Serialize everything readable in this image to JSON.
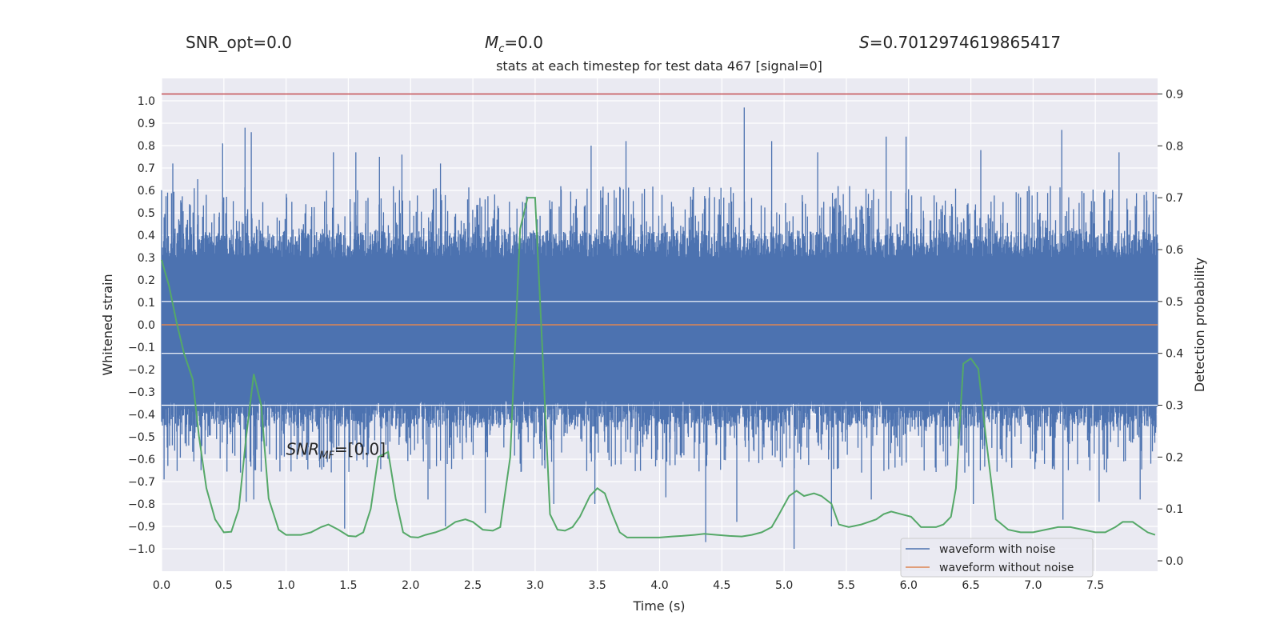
{
  "header": {
    "snr_opt": "SNR_opt=0.0",
    "mc_symbol": "M",
    "mc_sub": "c",
    "mc_value": "=0.0",
    "s_symbol": "S",
    "s_value": "=0.7012974619865417"
  },
  "chart_data": {
    "type": "line",
    "title": "stats at each timestep for test data 467 [signal=0]",
    "xlabel": "Time (s)",
    "ylabel": "Whitened strain",
    "y2label": "Detection probability",
    "xlim": [
      0.0,
      8.0
    ],
    "ylim": [
      -1.1,
      1.1
    ],
    "y2lim": [
      -0.02,
      0.93
    ],
    "x_ticks": [
      0.0,
      0.5,
      1.0,
      1.5,
      2.0,
      2.5,
      3.0,
      3.5,
      4.0,
      4.5,
      5.0,
      5.5,
      6.0,
      6.5,
      7.0,
      7.5
    ],
    "x_tick_labels": [
      "0.0",
      "0.5",
      "1.0",
      "1.5",
      "2.0",
      "2.5",
      "3.0",
      "3.5",
      "4.0",
      "4.5",
      "5.0",
      "5.5",
      "6.0",
      "6.5",
      "7.0",
      "7.5"
    ],
    "y_ticks": [
      1.0,
      0.9,
      0.8,
      0.7,
      0.6,
      0.5,
      0.4,
      0.3,
      0.2,
      0.1,
      0.0,
      -0.1,
      -0.2,
      -0.3,
      -0.4,
      -0.5,
      -0.6,
      -0.7,
      -0.8,
      -0.9,
      -1.0
    ],
    "y_tick_labels": [
      "1.0",
      "0.9",
      "0.8",
      "0.7",
      "0.6",
      "0.5",
      "0.4",
      "0.3",
      "0.2",
      "0.1",
      "0.0",
      "−0.1",
      "−0.2",
      "−0.3",
      "−0.4",
      "−0.5",
      "−0.6",
      "−0.7",
      "−0.8",
      "−0.9",
      "−1.0"
    ],
    "y2_ticks": [
      0.9,
      0.8,
      0.7,
      0.6,
      0.5,
      0.4,
      0.3,
      0.2,
      0.1,
      0.0
    ],
    "y2_tick_labels": [
      "0.9",
      "0.8",
      "0.7",
      "0.6",
      "0.5",
      "0.4",
      "0.3",
      "0.2",
      "0.1",
      "0.0"
    ],
    "threshold": 0.9,
    "grid": true,
    "legend_position": "bottom-right",
    "annotation": {
      "base": "SNR",
      "sub": "MF",
      "value": "=[0.0]",
      "x": 1.0,
      "y": -0.58
    },
    "series": [
      {
        "name": "waveform with noise",
        "color": "#4c72b0",
        "kind": "noise",
        "band_max": 0.3,
        "band_min": -0.34,
        "spikes_pos": [
          [
            0.02,
            0.48
          ],
          [
            0.09,
            0.72
          ],
          [
            0.29,
            0.65
          ],
          [
            0.49,
            0.81
          ],
          [
            0.67,
            0.88
          ],
          [
            0.72,
            0.86
          ],
          [
            1.38,
            0.77
          ],
          [
            1.56,
            0.77
          ],
          [
            1.75,
            0.75
          ],
          [
            1.93,
            0.76
          ],
          [
            2.24,
            0.72
          ],
          [
            3.45,
            0.8
          ],
          [
            3.73,
            0.82
          ],
          [
            4.68,
            0.97
          ],
          [
            4.9,
            0.82
          ],
          [
            5.27,
            0.77
          ],
          [
            5.82,
            0.84
          ],
          [
            5.98,
            0.84
          ],
          [
            6.58,
            0.78
          ],
          [
            7.23,
            0.87
          ],
          [
            7.69,
            0.77
          ]
        ],
        "spikes_neg": [
          [
            0.02,
            -0.69
          ],
          [
            0.05,
            -0.63
          ],
          [
            0.68,
            -0.79
          ],
          [
            0.74,
            -0.78
          ],
          [
            1.47,
            -0.91
          ],
          [
            2.14,
            -0.78
          ],
          [
            2.28,
            -0.9
          ],
          [
            2.6,
            -0.84
          ],
          [
            2.88,
            -0.62
          ],
          [
            3.15,
            -0.8
          ],
          [
            3.48,
            -0.8
          ],
          [
            4.05,
            -0.77
          ],
          [
            4.37,
            -0.97
          ],
          [
            4.62,
            -0.88
          ],
          [
            5.08,
            -1.0
          ],
          [
            5.38,
            -0.9
          ],
          [
            5.7,
            -0.78
          ],
          [
            6.52,
            -0.8
          ],
          [
            7.24,
            -0.87
          ],
          [
            7.53,
            -0.79
          ],
          [
            7.86,
            -0.78
          ]
        ]
      },
      {
        "name": "waveform without noise",
        "color": "#dd8452",
        "kind": "line",
        "y": 0.0
      },
      {
        "name": "",
        "color": "#55a868",
        "kind": "probability",
        "axis": "y2",
        "x": [
          0.0,
          0.06,
          0.12,
          0.18,
          0.25,
          0.3,
          0.36,
          0.43,
          0.5,
          0.56,
          0.62,
          0.68,
          0.74,
          0.8,
          0.86,
          0.94,
          1.0,
          1.06,
          1.12,
          1.2,
          1.28,
          1.34,
          1.42,
          1.5,
          1.56,
          1.62,
          1.68,
          1.74,
          1.82,
          1.88,
          1.94,
          2.0,
          2.06,
          2.12,
          2.2,
          2.28,
          2.36,
          2.44,
          2.5,
          2.58,
          2.66,
          2.72,
          2.8,
          2.88,
          2.94,
          3.0,
          3.06,
          3.12,
          3.18,
          3.24,
          3.3,
          3.36,
          3.44,
          3.5,
          3.56,
          3.62,
          3.68,
          3.74,
          3.82,
          3.9,
          4.0,
          4.1,
          4.18,
          4.28,
          4.36,
          4.46,
          4.56,
          4.66,
          4.74,
          4.82,
          4.9,
          4.96,
          5.04,
          5.1,
          5.16,
          5.24,
          5.3,
          5.38,
          5.44,
          5.52,
          5.62,
          5.68,
          5.74,
          5.8,
          5.86,
          5.94,
          6.02,
          6.1,
          6.16,
          6.22,
          6.28,
          6.34,
          6.38,
          6.44,
          6.5,
          6.56,
          6.62,
          6.7,
          6.8,
          6.9,
          7.0,
          7.1,
          7.2,
          7.3,
          7.4,
          7.5,
          7.58,
          7.66,
          7.72,
          7.8,
          7.86,
          7.92,
          7.98
        ],
        "y": [
          0.58,
          0.53,
          0.46,
          0.4,
          0.35,
          0.24,
          0.14,
          0.08,
          0.055,
          0.056,
          0.1,
          0.24,
          0.36,
          0.3,
          0.12,
          0.06,
          0.05,
          0.05,
          0.05,
          0.055,
          0.065,
          0.07,
          0.06,
          0.048,
          0.047,
          0.055,
          0.1,
          0.2,
          0.21,
          0.12,
          0.055,
          0.046,
          0.045,
          0.05,
          0.055,
          0.062,
          0.075,
          0.08,
          0.075,
          0.06,
          0.058,
          0.065,
          0.2,
          0.64,
          0.7,
          0.7,
          0.4,
          0.09,
          0.06,
          0.058,
          0.065,
          0.085,
          0.125,
          0.14,
          0.13,
          0.09,
          0.055,
          0.045,
          0.045,
          0.045,
          0.045,
          0.047,
          0.048,
          0.05,
          0.052,
          0.05,
          0.048,
          0.047,
          0.05,
          0.055,
          0.065,
          0.09,
          0.125,
          0.135,
          0.125,
          0.13,
          0.125,
          0.11,
          0.07,
          0.065,
          0.07,
          0.075,
          0.08,
          0.09,
          0.095,
          0.09,
          0.085,
          0.065,
          0.065,
          0.065,
          0.07,
          0.085,
          0.14,
          0.38,
          0.39,
          0.37,
          0.24,
          0.08,
          0.06,
          0.055,
          0.055,
          0.06,
          0.065,
          0.065,
          0.06,
          0.055,
          0.055,
          0.065,
          0.075,
          0.075,
          0.065,
          0.055,
          0.05
        ]
      }
    ]
  }
}
